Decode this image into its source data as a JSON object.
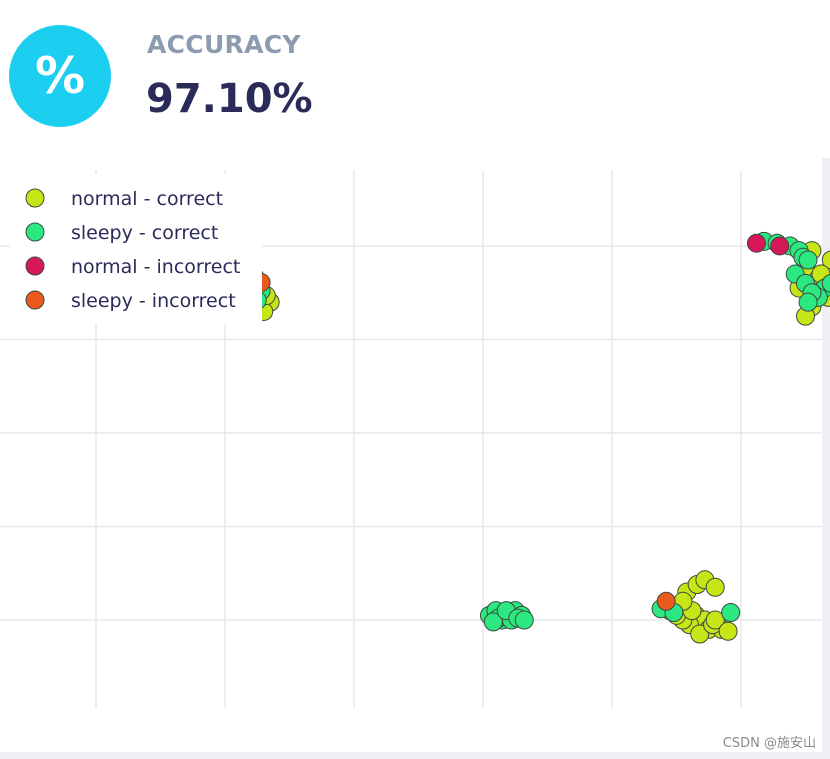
{
  "stat": {
    "icon": "percent-icon",
    "icon_glyph": "%",
    "label": "ACCURACY",
    "value": "97.10%",
    "accent_color": "#1ccff0"
  },
  "watermark": "CSDN @施安山",
  "chart_data": {
    "type": "scatter",
    "title": "",
    "xlabel": "",
    "ylabel": "",
    "grid": true,
    "legend_position": "top-left",
    "xlim": [
      -1.0,
      6.0
    ],
    "ylim": [
      -1.25,
      4.55
    ],
    "series": [
      {
        "name": "normal - correct",
        "color": "#c8e617",
        "points": [
          [
            1.15,
            3.45
          ],
          [
            1.25,
            3.5
          ],
          [
            1.35,
            3.4
          ],
          [
            1.2,
            3.35
          ],
          [
            1.3,
            3.3
          ],
          [
            1.1,
            3.38
          ],
          [
            1.32,
            3.47
          ],
          [
            1.22,
            3.42
          ],
          [
            5.55,
            3.95
          ],
          [
            5.7,
            3.85
          ],
          [
            5.5,
            3.75
          ],
          [
            5.6,
            3.65
          ],
          [
            5.72,
            3.6
          ],
          [
            5.45,
            3.55
          ],
          [
            5.65,
            3.5
          ],
          [
            5.55,
            3.35
          ],
          [
            5.5,
            3.25
          ],
          [
            5.62,
            3.7
          ],
          [
            5.68,
            3.45
          ],
          [
            4.65,
            0.05
          ],
          [
            4.72,
            0.0
          ],
          [
            4.6,
            -0.05
          ],
          [
            4.75,
            -0.1
          ],
          [
            4.55,
            0.0
          ],
          [
            4.85,
            -0.1
          ],
          [
            4.68,
            -0.15
          ],
          [
            4.78,
            -0.05
          ],
          [
            4.5,
            0.05
          ],
          [
            4.62,
            0.1
          ],
          [
            4.8,
            0.0
          ],
          [
            4.9,
            -0.12
          ],
          [
            4.45,
            0.1
          ],
          [
            4.58,
            0.3
          ],
          [
            4.66,
            0.38
          ],
          [
            4.72,
            0.43
          ],
          [
            4.55,
            0.2
          ],
          [
            4.8,
            0.35
          ]
        ]
      },
      {
        "name": "sleepy - correct",
        "color": "#2de880",
        "points": [
          [
            0.35,
            3.33
          ],
          [
            0.43,
            3.38
          ],
          [
            0.48,
            3.4
          ],
          [
            0.6,
            3.38
          ],
          [
            0.4,
            3.35
          ],
          [
            0.53,
            3.36
          ],
          [
            0.93,
            3.38
          ],
          [
            1.05,
            3.45
          ],
          [
            1.2,
            3.52
          ],
          [
            1.28,
            3.52
          ],
          [
            1.25,
            3.42
          ],
          [
            5.18,
            4.05
          ],
          [
            5.28,
            4.03
          ],
          [
            5.38,
            4.0
          ],
          [
            5.45,
            3.95
          ],
          [
            5.48,
            3.88
          ],
          [
            5.52,
            3.85
          ],
          [
            5.42,
            3.7
          ],
          [
            5.5,
            3.6
          ],
          [
            5.58,
            3.5
          ],
          [
            5.65,
            3.55
          ],
          [
            5.7,
            3.6
          ],
          [
            5.6,
            3.45
          ],
          [
            5.55,
            3.5
          ],
          [
            5.52,
            3.4
          ],
          [
            3.05,
            0.05
          ],
          [
            3.1,
            0.1
          ],
          [
            3.15,
            0.0
          ],
          [
            3.2,
            0.05
          ],
          [
            3.25,
            0.1
          ],
          [
            3.3,
            0.05
          ],
          [
            3.12,
            0.02
          ],
          [
            3.22,
            0.0
          ],
          [
            3.08,
            -0.02
          ],
          [
            3.18,
            0.1
          ],
          [
            3.27,
            0.02
          ],
          [
            3.32,
            0.0
          ],
          [
            4.38,
            0.12
          ],
          [
            4.48,
            0.08
          ],
          [
            4.92,
            0.08
          ]
        ]
      },
      {
        "name": "normal - incorrect",
        "color": "#d8175a",
        "points": [
          [
            5.12,
            4.03
          ],
          [
            5.3,
            4.0
          ]
        ]
      },
      {
        "name": "sleepy - incorrect",
        "color": "#ea5a1e",
        "points": [
          [
            1.23,
            3.67
          ],
          [
            1.28,
            3.61
          ],
          [
            4.42,
            0.2
          ]
        ]
      }
    ]
  }
}
